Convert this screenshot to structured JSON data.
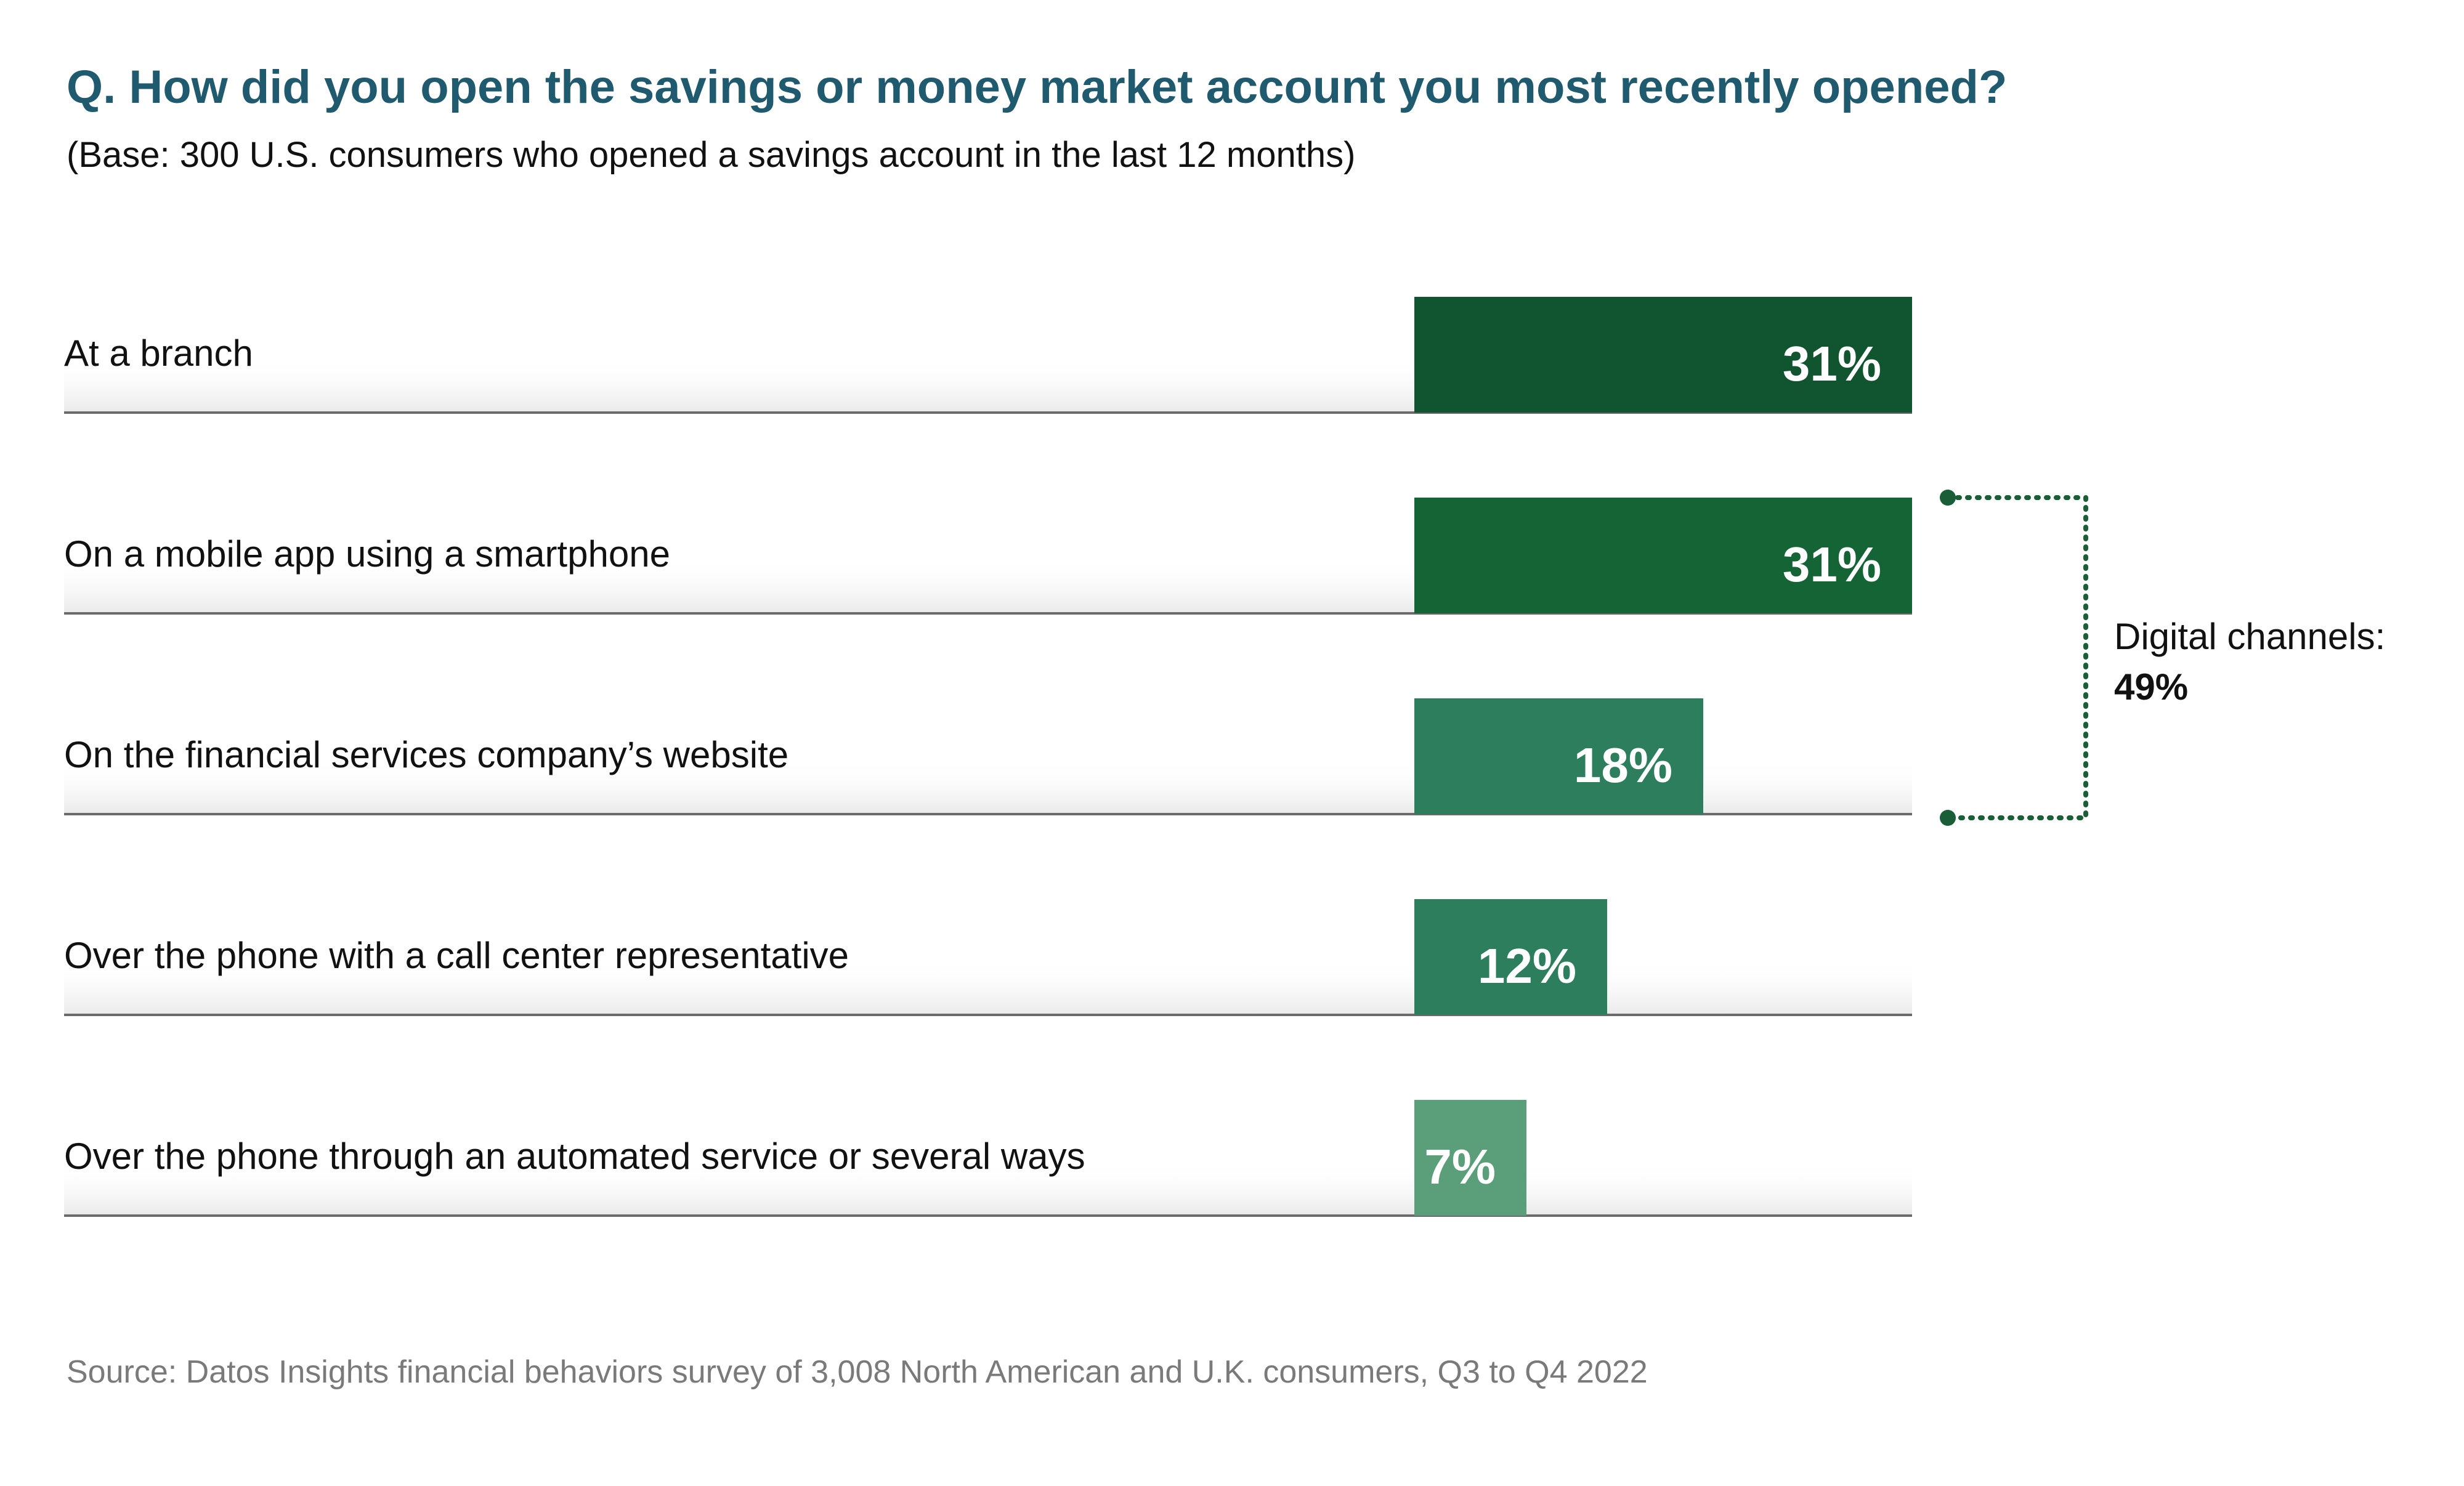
{
  "chart_data": {
    "type": "bar",
    "orientation": "horizontal",
    "title": "Q. How did you open the savings or money market account you most recently opened?",
    "subtitle": "(Base: 300 U.S. consumers who opened a savings account in the last 12 months)",
    "categories": [
      "At a branch",
      "On a mobile app using a smartphone",
      "On the financial services company’s website",
      "Over the phone with a call center representative",
      "Over the phone through an automated service or several ways"
    ],
    "values": [
      31,
      31,
      18,
      12,
      7
    ],
    "value_labels": [
      "31%",
      "31%",
      "18%",
      "12%",
      "7%"
    ],
    "xlim": [
      0,
      31
    ],
    "colors": [
      "#115530",
      "#156436",
      "#2c7e5c",
      "#2c7e5c",
      "#5b9e7a"
    ],
    "bracket": {
      "label": "Digital channels:",
      "value": "49%",
      "color": "#1a5e38"
    },
    "grid": false,
    "legend": "none",
    "source": "Source: Datos Insights financial behaviors survey of 3,008 North American and U.K. consumers, Q3 to Q4 2022"
  }
}
